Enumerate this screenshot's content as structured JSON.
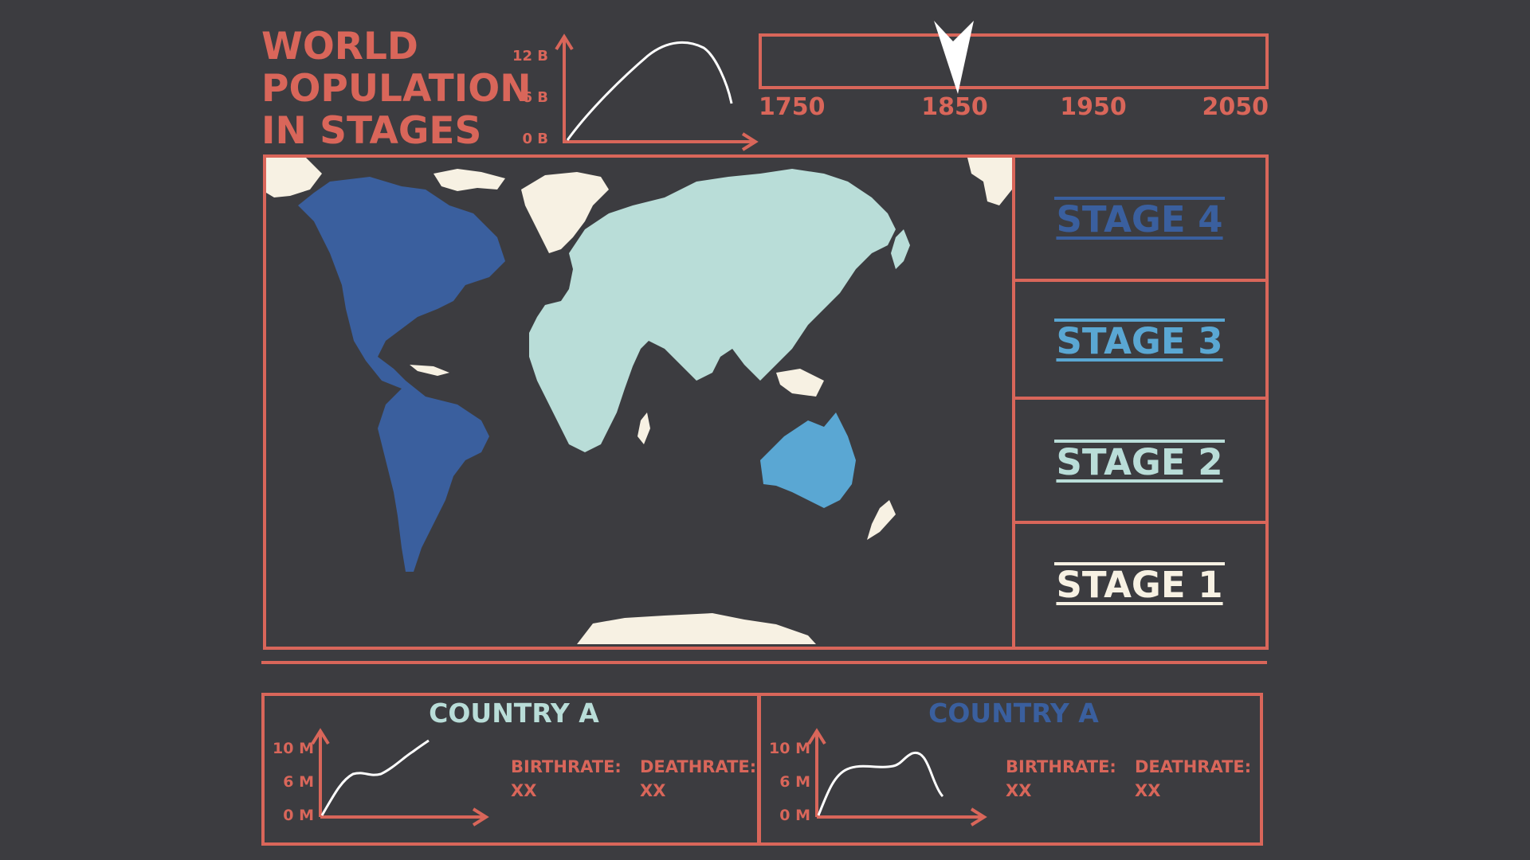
{
  "header": {
    "title_lines": [
      "WORLD",
      "POPULATION",
      "IN STAGES"
    ]
  },
  "population_chart": {
    "y_ticks": [
      "12 B",
      "6 B",
      "0 B"
    ]
  },
  "timeline": {
    "ticks": [
      "1750",
      "1850",
      "1950",
      "2050"
    ],
    "selected_year": "1850"
  },
  "stages": [
    {
      "label": "STAGE 4",
      "color": "#3a5f9e"
    },
    {
      "label": "STAGE 3",
      "color": "#5aa7d3"
    },
    {
      "label": "STAGE 2",
      "color": "#b9ddd8"
    },
    {
      "label": "STAGE 1",
      "color": "#f7f1e3"
    }
  ],
  "map": {
    "region_colors": {
      "americas": "#3a5f9e",
      "oceania": "#5aa7d3",
      "eurasia_africa": "#b9ddd8",
      "polar": "#f7f1e3",
      "ocean": "#3c3c40"
    }
  },
  "country_panels": [
    {
      "title": "COUNTRY A",
      "title_color": "#b9ddd8",
      "y_ticks": [
        "10 M",
        "6 M",
        "0 M"
      ],
      "birthrate_label": "BIRTHRATE:",
      "birthrate_value": "XX",
      "deathrate_label": "DEATHRATE:",
      "deathrate_value": "XX"
    },
    {
      "title": "COUNTRY A",
      "title_color": "#3a5f9e",
      "y_ticks": [
        "10 M",
        "6 M",
        "0 M"
      ],
      "birthrate_label": "BIRTHRATE:",
      "birthrate_value": "XX",
      "deathrate_label": "DEATHRATE:",
      "deathrate_value": "XX"
    }
  ],
  "colors": {
    "accent": "#d9665a",
    "background": "#3c3c40",
    "line": "#ffffff"
  }
}
